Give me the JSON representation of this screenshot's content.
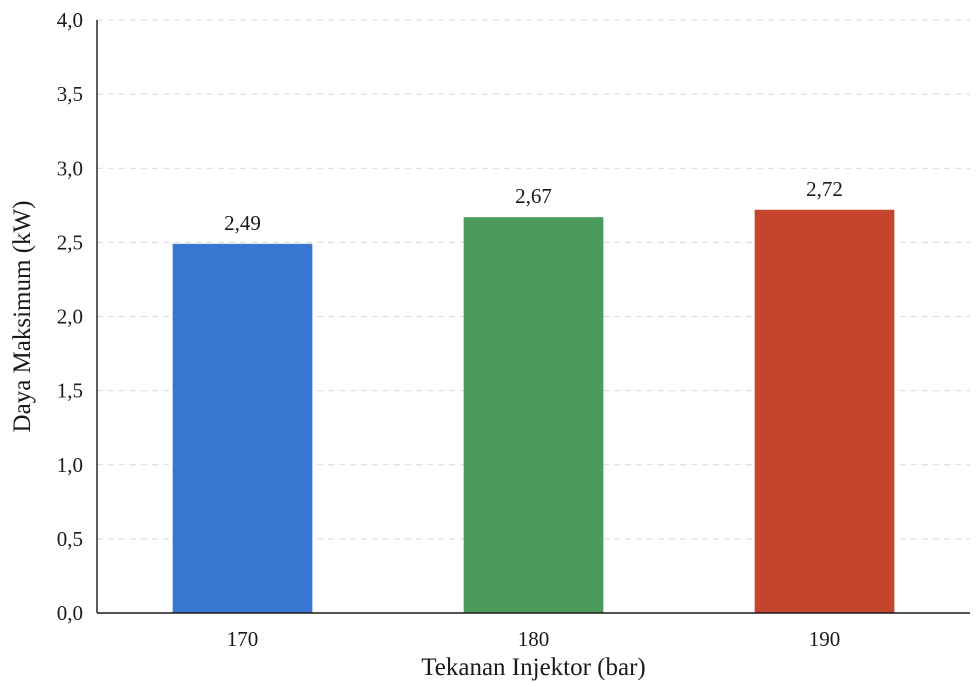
{
  "chart_data": {
    "type": "bar",
    "title": "",
    "xlabel": "Tekanan Injektor (bar)",
    "ylabel": "Daya Maksimum (kW)",
    "categories": [
      "170",
      "180",
      "190"
    ],
    "values": [
      2.49,
      2.67,
      2.72
    ],
    "value_labels": [
      "2,49",
      "2,67",
      "2,72"
    ],
    "bar_colors": [
      "#3677d1",
      "#4a9a5b",
      "#c4452c"
    ],
    "ylim": [
      0,
      4
    ],
    "y_ticks": [
      0,
      0.5,
      1,
      1.5,
      2,
      2.5,
      3,
      3.5,
      4
    ],
    "y_tick_labels": [
      "0,0",
      "0,5",
      "1,0",
      "1,5",
      "2,0",
      "2,5",
      "3,0",
      "3,5",
      "4,0"
    ],
    "grid": true,
    "legend": "none"
  }
}
